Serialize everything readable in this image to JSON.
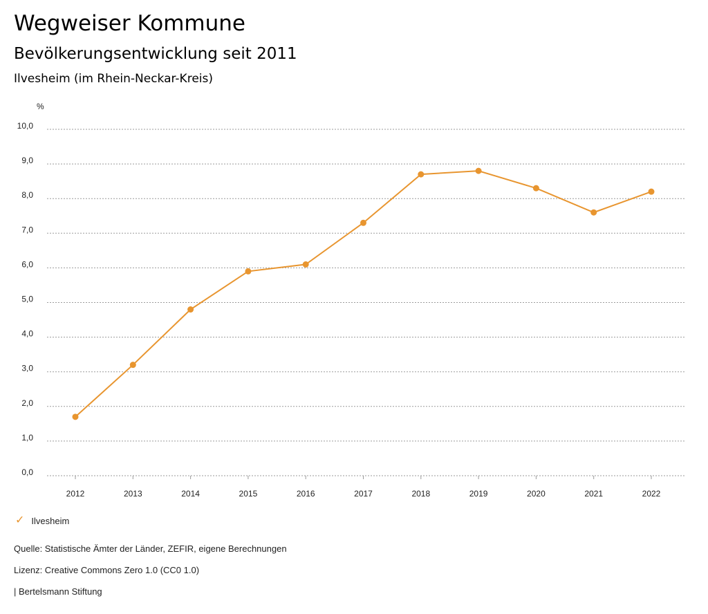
{
  "header": {
    "title": "Wegweiser Kommune",
    "subtitle": "Bevölkerungsentwicklung seit 2011",
    "region": "Ilvesheim (im Rhein-Neckar-Kreis)"
  },
  "chart_data": {
    "type": "line",
    "ylabel": "%",
    "ylim": [
      0,
      10
    ],
    "yticks": [
      "0,0",
      "1,0",
      "2,0",
      "3,0",
      "4,0",
      "5,0",
      "6,0",
      "7,0",
      "8,0",
      "9,0",
      "10,0"
    ],
    "x": [
      "2012",
      "2013",
      "2014",
      "2015",
      "2016",
      "2017",
      "2018",
      "2019",
      "2020",
      "2021",
      "2022"
    ],
    "series": [
      {
        "name": "Ilvesheim",
        "color": "#e8952f",
        "values": [
          1.7,
          3.2,
          4.8,
          5.9,
          6.1,
          7.3,
          8.7,
          8.8,
          8.3,
          7.6,
          8.2
        ]
      }
    ],
    "grid": true,
    "legend_position": "bottom-left"
  },
  "legend": {
    "icon": "check-icon",
    "label": "Ilvesheim"
  },
  "footer": {
    "source": "Quelle: Statistische Ämter der Länder, ZEFIR, eigene Berechnungen",
    "license": "Lizenz: Creative Commons Zero 1.0 (CC0 1.0)",
    "publisher": "| Bertelsmann Stiftung"
  }
}
